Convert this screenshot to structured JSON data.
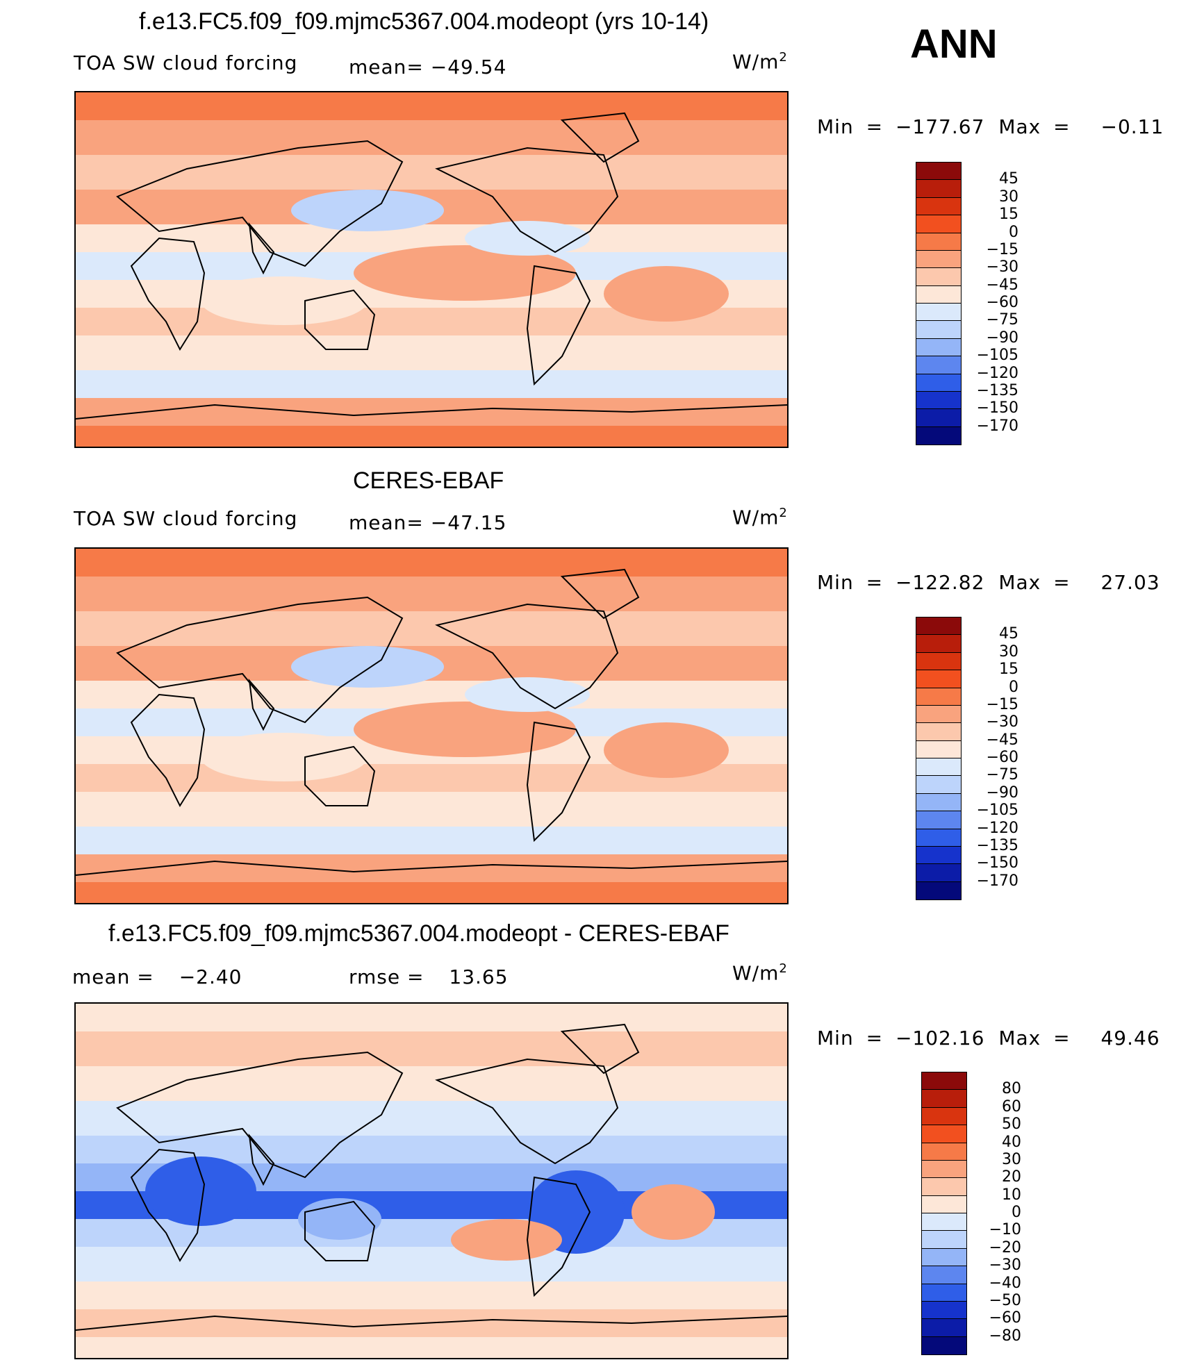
{
  "season": "ANN",
  "panels": [
    {
      "id": "model",
      "title": "f.e13.FC5.f09_f09.mjmc5367.004.modeopt (yrs 10-14)",
      "left_label": "TOA SW cloud forcing",
      "stat1_label": "mean=",
      "stat1_value": "−49.54",
      "stat2_label": "",
      "stat2_value": "",
      "units": "W/m",
      "units_sup": "2",
      "min_label": "Min",
      "min_value": "−177.67",
      "max_label": "Max",
      "max_value": "−0.11",
      "eq": "=",
      "colorbar": {
        "levels": [
          "45",
          "30",
          "15",
          "0",
          "−15",
          "−30",
          "−45",
          "−60",
          "−75",
          "−90",
          "−105",
          "−120",
          "−135",
          "−150",
          "−170"
        ],
        "colors": [
          "#8b0a0a",
          "#b81e0b",
          "#d9340f",
          "#f2501f",
          "#f67a48",
          "#f9a37e",
          "#fcc8ad",
          "#fde7d8",
          "#dbe9fb",
          "#bdd4fb",
          "#94b5f7",
          "#5d86ef",
          "#2f5ee8",
          "#1633cc",
          "#0c1ca8",
          "#04097a"
        ]
      }
    },
    {
      "id": "obs",
      "title": "CERES-EBAF",
      "left_label": "TOA SW cloud forcing",
      "stat1_label": "mean=",
      "stat1_value": "−47.15",
      "stat2_label": "",
      "stat2_value": "",
      "units": "W/m",
      "units_sup": "2",
      "min_label": "Min",
      "min_value": "−122.82",
      "max_label": "Max",
      "max_value": "27.03",
      "eq": "=",
      "colorbar": {
        "levels": [
          "45",
          "30",
          "15",
          "0",
          "−15",
          "−30",
          "−45",
          "−60",
          "−75",
          "−90",
          "−105",
          "−120",
          "−135",
          "−150",
          "−170"
        ],
        "colors": [
          "#8b0a0a",
          "#b81e0b",
          "#d9340f",
          "#f2501f",
          "#f67a48",
          "#f9a37e",
          "#fcc8ad",
          "#fde7d8",
          "#dbe9fb",
          "#bdd4fb",
          "#94b5f7",
          "#5d86ef",
          "#2f5ee8",
          "#1633cc",
          "#0c1ca8",
          "#04097a"
        ]
      }
    },
    {
      "id": "diff",
      "title": "f.e13.FC5.f09_f09.mjmc5367.004.modeopt - CERES-EBAF",
      "left_label": "",
      "stat1_label": "mean =",
      "stat1_value": "−2.40",
      "stat2_label": "rmse =",
      "stat2_value": "13.65",
      "units": "W/m",
      "units_sup": "2",
      "min_label": "Min",
      "min_value": "−102.16",
      "max_label": "Max",
      "max_value": "49.46",
      "eq": "=",
      "colorbar": {
        "levels": [
          "80",
          "60",
          "50",
          "40",
          "30",
          "20",
          "10",
          "0",
          "−10",
          "−20",
          "−30",
          "−40",
          "−50",
          "−60",
          "−80"
        ],
        "colors": [
          "#8b0a0a",
          "#b81e0b",
          "#d9340f",
          "#f2501f",
          "#f67a48",
          "#f9a37e",
          "#fcc8ad",
          "#fde7d8",
          "#dbe9fb",
          "#bdd4fb",
          "#94b5f7",
          "#5d86ef",
          "#2f5ee8",
          "#1633cc",
          "#0c1ca8",
          "#04097a"
        ]
      }
    }
  ]
}
